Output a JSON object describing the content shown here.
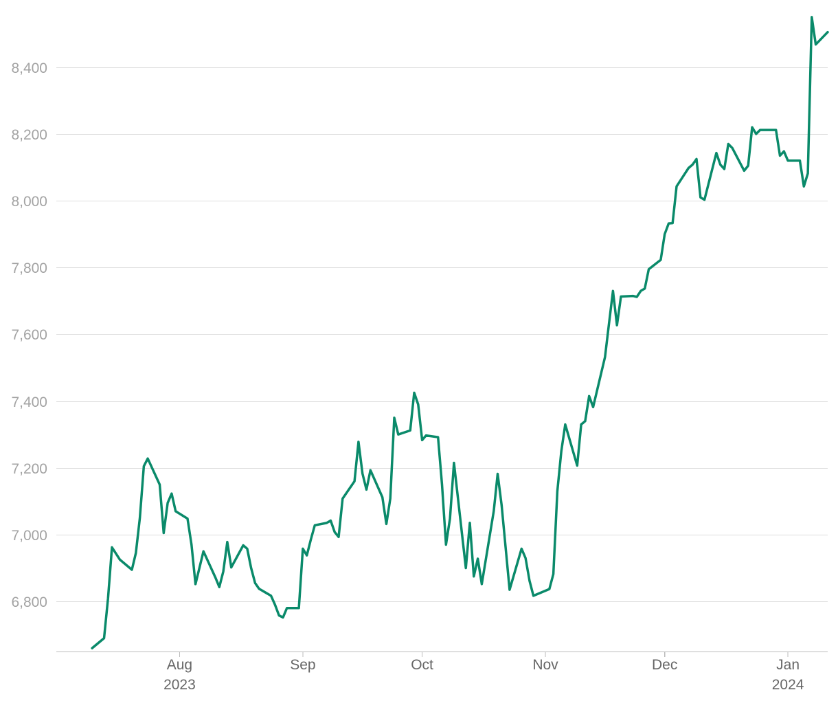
{
  "chart_data": {
    "type": "line",
    "title": "",
    "xlabel": "",
    "ylabel": "",
    "ylim": [
      6650,
      8560
    ],
    "xlim": [
      "2023-07-01",
      "2024-01-11"
    ],
    "grid": true,
    "legend": "none",
    "colors": {
      "line": "#0a8a6a",
      "grid": "#dddddd",
      "axis": "#bbbbbb"
    },
    "y_ticks": [
      {
        "value": 6800,
        "label": "6,800"
      },
      {
        "value": 7000,
        "label": "7,000"
      },
      {
        "value": 7200,
        "label": "7,200"
      },
      {
        "value": 7400,
        "label": "7,400"
      },
      {
        "value": 7600,
        "label": "7,600"
      },
      {
        "value": 7800,
        "label": "7,800"
      },
      {
        "value": 8000,
        "label": "8,000"
      },
      {
        "value": 8200,
        "label": "8,200"
      },
      {
        "value": 8400,
        "label": "8,400"
      }
    ],
    "x_ticks": [
      {
        "date": "2023-08-01",
        "label": "Aug",
        "sublabel": "2023"
      },
      {
        "date": "2023-09-01",
        "label": "Sep",
        "sublabel": ""
      },
      {
        "date": "2023-10-01",
        "label": "Oct",
        "sublabel": ""
      },
      {
        "date": "2023-11-01",
        "label": "Nov",
        "sublabel": ""
      },
      {
        "date": "2023-12-01",
        "label": "Dec",
        "sublabel": ""
      },
      {
        "date": "2024-01-01",
        "label": "Jan",
        "sublabel": "2024"
      }
    ],
    "series": [
      {
        "points": [
          [
            "2023-07-10",
            6660
          ],
          [
            "2023-07-13",
            6690
          ],
          [
            "2023-07-14",
            6810
          ],
          [
            "2023-07-15",
            6962
          ],
          [
            "2023-07-17",
            6925
          ],
          [
            "2023-07-20",
            6895
          ],
          [
            "2023-07-21",
            6945
          ],
          [
            "2023-07-22",
            7050
          ],
          [
            "2023-07-23",
            7205
          ],
          [
            "2023-07-24",
            7228
          ],
          [
            "2023-07-27",
            7150
          ],
          [
            "2023-07-28",
            7005
          ],
          [
            "2023-07-29",
            7095
          ],
          [
            "2023-07-30",
            7123
          ],
          [
            "2023-07-31",
            7070
          ],
          [
            "2023-08-03",
            7048
          ],
          [
            "2023-08-04",
            6970
          ],
          [
            "2023-08-05",
            6852
          ],
          [
            "2023-08-07",
            6950
          ],
          [
            "2023-08-10",
            6872
          ],
          [
            "2023-08-11",
            6843
          ],
          [
            "2023-08-12",
            6890
          ],
          [
            "2023-08-13",
            6978
          ],
          [
            "2023-08-14",
            6902
          ],
          [
            "2023-08-17",
            6968
          ],
          [
            "2023-08-18",
            6958
          ],
          [
            "2023-08-19",
            6900
          ],
          [
            "2023-08-20",
            6855
          ],
          [
            "2023-08-21",
            6838
          ],
          [
            "2023-08-24",
            6817
          ],
          [
            "2023-08-25",
            6790
          ],
          [
            "2023-08-26",
            6758
          ],
          [
            "2023-08-27",
            6752
          ],
          [
            "2023-08-28",
            6780
          ],
          [
            "2023-08-31",
            6780
          ],
          [
            "2023-09-01",
            6958
          ],
          [
            "2023-09-02",
            6938
          ],
          [
            "2023-09-03",
            6985
          ],
          [
            "2023-09-04",
            7028
          ],
          [
            "2023-09-07",
            7035
          ],
          [
            "2023-09-08",
            7042
          ],
          [
            "2023-09-09",
            7008
          ],
          [
            "2023-09-10",
            6993
          ],
          [
            "2023-09-11",
            7108
          ],
          [
            "2023-09-14",
            7160
          ],
          [
            "2023-09-15",
            7278
          ],
          [
            "2023-09-16",
            7183
          ],
          [
            "2023-09-17",
            7135
          ],
          [
            "2023-09-18",
            7193
          ],
          [
            "2023-09-21",
            7112
          ],
          [
            "2023-09-22",
            7032
          ],
          [
            "2023-09-23",
            7108
          ],
          [
            "2023-09-24",
            7350
          ],
          [
            "2023-09-25",
            7300
          ],
          [
            "2023-09-28",
            7312
          ],
          [
            "2023-09-29",
            7425
          ],
          [
            "2023-09-30",
            7390
          ],
          [
            "2023-10-01",
            7283
          ],
          [
            "2023-10-02",
            7297
          ],
          [
            "2023-10-05",
            7292
          ],
          [
            "2023-10-06",
            7150
          ],
          [
            "2023-10-07",
            6970
          ],
          [
            "2023-10-08",
            7048
          ],
          [
            "2023-10-09",
            7215
          ],
          [
            "2023-10-12",
            6900
          ],
          [
            "2023-10-13",
            7035
          ],
          [
            "2023-10-14",
            6875
          ],
          [
            "2023-10-15",
            6928
          ],
          [
            "2023-10-16",
            6852
          ],
          [
            "2023-10-19",
            7070
          ],
          [
            "2023-10-20",
            7182
          ],
          [
            "2023-10-21",
            7088
          ],
          [
            "2023-10-23",
            6835
          ],
          [
            "2023-10-26",
            6958
          ],
          [
            "2023-10-27",
            6930
          ],
          [
            "2023-10-28",
            6862
          ],
          [
            "2023-10-29",
            6817
          ],
          [
            "2023-11-02",
            6837
          ],
          [
            "2023-11-03",
            6882
          ],
          [
            "2023-11-04",
            7130
          ],
          [
            "2023-11-05",
            7250
          ],
          [
            "2023-11-06",
            7330
          ],
          [
            "2023-11-09",
            7207
          ],
          [
            "2023-11-10",
            7330
          ],
          [
            "2023-11-11",
            7340
          ],
          [
            "2023-11-12",
            7415
          ],
          [
            "2023-11-13",
            7382
          ],
          [
            "2023-11-16",
            7532
          ],
          [
            "2023-11-17",
            7632
          ],
          [
            "2023-11-18",
            7730
          ],
          [
            "2023-11-19",
            7627
          ],
          [
            "2023-11-20",
            7713
          ],
          [
            "2023-11-23",
            7715
          ],
          [
            "2023-11-24",
            7712
          ],
          [
            "2023-11-25",
            7730
          ],
          [
            "2023-11-26",
            7737
          ],
          [
            "2023-11-27",
            7795
          ],
          [
            "2023-11-30",
            7823
          ],
          [
            "2023-12-01",
            7900
          ],
          [
            "2023-12-02",
            7932
          ],
          [
            "2023-12-03",
            7933
          ],
          [
            "2023-12-04",
            8043
          ],
          [
            "2023-12-07",
            8098
          ],
          [
            "2023-12-08",
            8108
          ],
          [
            "2023-12-09",
            8125
          ],
          [
            "2023-12-10",
            8010
          ],
          [
            "2023-12-11",
            8003
          ],
          [
            "2023-12-14",
            8143
          ],
          [
            "2023-12-15",
            8108
          ],
          [
            "2023-12-16",
            8095
          ],
          [
            "2023-12-17",
            8170
          ],
          [
            "2023-12-18",
            8158
          ],
          [
            "2023-12-21",
            8090
          ],
          [
            "2023-12-22",
            8105
          ],
          [
            "2023-12-23",
            8220
          ],
          [
            "2023-12-24",
            8200
          ],
          [
            "2023-12-25",
            8212
          ],
          [
            "2023-12-28",
            8212
          ],
          [
            "2023-12-29",
            8212
          ],
          [
            "2023-12-30",
            8135
          ],
          [
            "2023-12-31",
            8148
          ],
          [
            "2024-01-01",
            8120
          ],
          [
            "2024-01-04",
            8120
          ],
          [
            "2024-01-05",
            8043
          ],
          [
            "2024-01-06",
            8082
          ],
          [
            "2024-01-07",
            8550
          ],
          [
            "2024-01-08",
            8468
          ],
          [
            "2024-01-11",
            8505
          ]
        ]
      }
    ]
  }
}
